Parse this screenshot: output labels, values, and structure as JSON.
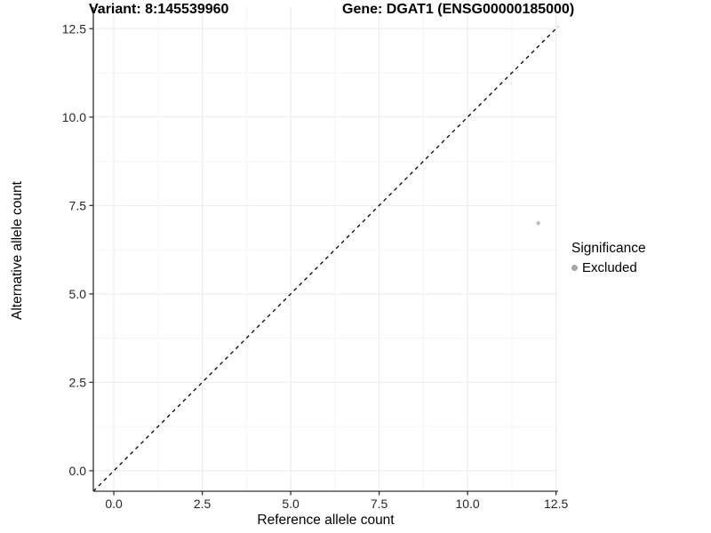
{
  "titles": {
    "variant": "Variant: 8:145539960",
    "gene": "Gene: DGAT1 (ENSG00000185000)"
  },
  "axes": {
    "x_label": "Reference allele count",
    "y_label": "Alternative allele count"
  },
  "legend": {
    "title": "Significance",
    "items": [
      {
        "label": "Excluded",
        "color": "#a6a6a6"
      }
    ]
  },
  "colors": {
    "background": "#ffffff",
    "grid_major": "#ebebeb",
    "grid_minor": "#f5f5f5",
    "axis_line": "#333333",
    "tick_mark": "#333333",
    "tick_label": "#262626",
    "reference_line": "#000000",
    "point": "#bfbfbf",
    "legend_dot": "#a6a6a6"
  },
  "chart_data": {
    "type": "scatter",
    "title_left": "Variant: 8:145539960",
    "title_right": "Gene: DGAT1 (ENSG00000185000)",
    "xlabel": "Reference allele count",
    "ylabel": "Alternative allele count",
    "xlim": [
      -0.58,
      12.56
    ],
    "ylim": [
      -0.58,
      13.11
    ],
    "x_major_ticks": [
      0,
      2.5,
      5,
      7.5,
      10,
      12.5
    ],
    "x_tick_labels": [
      "0.0",
      "2.5",
      "5.0",
      "7.5",
      "10.0",
      "12.5"
    ],
    "x_minor_ticks": [
      1.25,
      3.75,
      6.25,
      8.75,
      11.25
    ],
    "y_major_ticks": [
      0,
      2.5,
      5,
      7.5,
      10,
      12.5
    ],
    "y_tick_labels": [
      "0.0",
      "2.5",
      "5.0",
      "7.5",
      "10.0",
      "12.5"
    ],
    "y_minor_ticks": [
      1.25,
      3.75,
      6.25,
      8.75,
      11.25
    ],
    "grid": true,
    "legend_position": "right",
    "legend_title": "Significance",
    "reference_line": {
      "type": "identity",
      "style": "dashed",
      "color": "#000000"
    },
    "series": [
      {
        "name": "Excluded",
        "color": "#bfbfbf",
        "points": [
          {
            "x": 12,
            "y": 7
          }
        ]
      }
    ]
  }
}
